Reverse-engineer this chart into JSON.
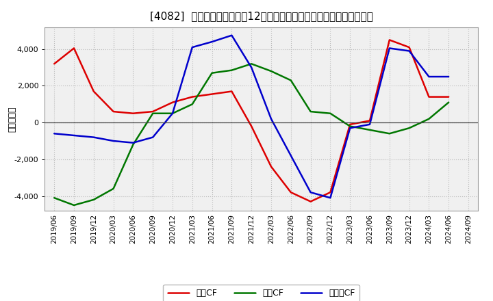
{
  "title": "[4082]  キャッシュフローの12か月移動合計の対前年同期増減額の推移",
  "ylabel": "（百万円）",
  "xlabels": [
    "2019/06",
    "2019/09",
    "2019/12",
    "2020/03",
    "2020/06",
    "2020/09",
    "2020/12",
    "2021/03",
    "2021/06",
    "2021/09",
    "2021/12",
    "2022/03",
    "2022/06",
    "2022/09",
    "2022/12",
    "2023/03",
    "2023/06",
    "2023/09",
    "2023/12",
    "2024/03",
    "2024/06",
    "2024/09"
  ],
  "eigyo_cf": [
    3200,
    4050,
    1700,
    600,
    500,
    600,
    1100,
    1400,
    1550,
    1700,
    -200,
    -2400,
    -3800,
    -4300,
    -3800,
    -100,
    100,
    4500,
    4100,
    1400,
    1400,
    null
  ],
  "toshi_cf": [
    -4100,
    -4500,
    -4200,
    -3600,
    -1200,
    500,
    500,
    1000,
    2700,
    2850,
    3200,
    2800,
    2300,
    600,
    500,
    -200,
    -400,
    -600,
    -300,
    200,
    1100,
    null
  ],
  "free_cf": [
    -600,
    -700,
    -800,
    -1000,
    -1100,
    -800,
    500,
    4100,
    4400,
    4750,
    3000,
    200,
    -1800,
    -3800,
    -4100,
    -300,
    -100,
    4050,
    3900,
    2500,
    2500,
    null
  ],
  "eigyo_label": "営業CF",
  "toshi_label": "投資CF",
  "free_label": "フリーCF",
  "eigyo_color": "#dd0000",
  "toshi_color": "#007700",
  "free_color": "#0000cc",
  "ylim": [
    -4800,
    5200
  ],
  "yticks": [
    -4000,
    -2000,
    0,
    2000,
    4000
  ],
  "background_color": "#ffffff",
  "plot_bg_color": "#f0f0f0",
  "grid_color": "#bbbbbb",
  "title_fontsize": 11,
  "legend_fontsize": 9,
  "ylabel_fontsize": 9,
  "tick_fontsize": 7.5
}
